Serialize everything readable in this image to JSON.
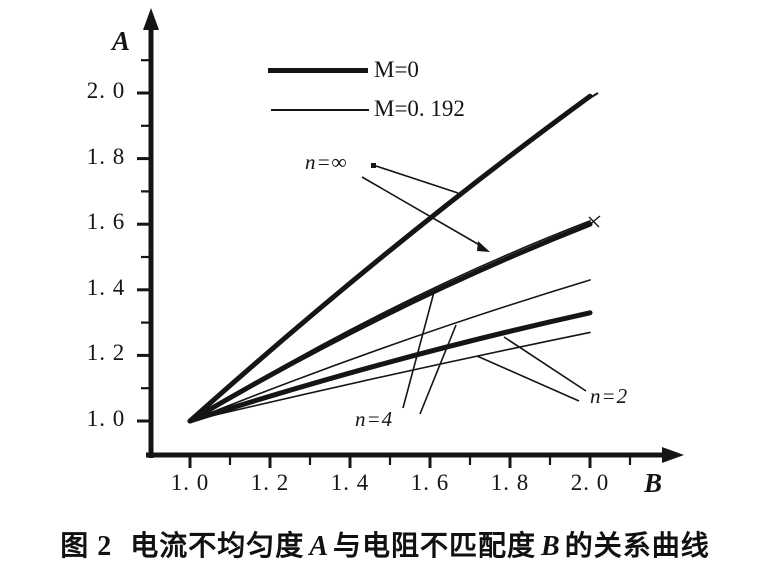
{
  "figure": {
    "axes": {
      "y_label": "A",
      "x_label": "B"
    },
    "caption": {
      "prefix": "图 2",
      "part1": "电流不均匀度",
      "varA": "A",
      "part2": "与电阻不匹配度",
      "varB": "B",
      "part3": "的关系曲线"
    }
  },
  "legend": [
    {
      "label": "M=0",
      "weight": "thick"
    },
    {
      "label": "M=0. 192",
      "weight": "thin"
    }
  ],
  "annotations": [
    {
      "id": "n-inf",
      "text": "n=∞"
    },
    {
      "id": "n-4",
      "text": "n=4"
    },
    {
      "id": "n-2",
      "text": "n=2"
    }
  ],
  "colors": {
    "ink": "#151515",
    "background": "#ffffff"
  },
  "chart_data": {
    "type": "line",
    "title": "",
    "xlabel": "B",
    "ylabel": "A",
    "xlim": [
      0.9,
      2.2
    ],
    "ylim": [
      0.9,
      2.15
    ],
    "grid": false,
    "legend_position": "inside-top-center",
    "x_major_ticks": {
      "values": [
        1.0,
        1.2,
        1.4,
        1.6,
        1.8,
        2.0
      ],
      "labels": [
        "1. 0",
        "1. 2",
        "1. 4",
        "1. 6",
        "1. 8",
        "2. 0"
      ]
    },
    "y_major_ticks": {
      "values": [
        1.0,
        1.2,
        1.4,
        1.6,
        1.8,
        2.0
      ],
      "labels": [
        "1. 0",
        "1. 2",
        "1. 4",
        "1. 6",
        "1. 8",
        "2. 0"
      ]
    },
    "minor_tick_step": 0.1,
    "tick_range": [
      1.0,
      2.1
    ],
    "series": [
      {
        "id": "n-inf-m0",
        "name": "n=∞, M=0",
        "weight": "thick",
        "points": [
          [
            1.0,
            1.0
          ],
          [
            1.5,
            1.52
          ],
          [
            2.0,
            1.99
          ]
        ]
      },
      {
        "id": "n-inf-m192",
        "name": "n=∞, M=0.192",
        "weight": "thin",
        "points": [
          [
            1.0,
            1.0
          ],
          [
            1.5,
            1.34
          ],
          [
            2.0,
            1.61
          ]
        ]
      },
      {
        "id": "n-4-m0",
        "name": "n=4, M=0",
        "weight": "thick",
        "points": [
          [
            1.0,
            1.0
          ],
          [
            1.5,
            1.33
          ],
          [
            2.0,
            1.6
          ]
        ]
      },
      {
        "id": "n-4-m192",
        "name": "n=4, M=0.192",
        "weight": "thin",
        "points": [
          [
            1.0,
            1.0
          ],
          [
            1.5,
            1.23
          ],
          [
            2.0,
            1.43
          ]
        ]
      },
      {
        "id": "n-2-m0",
        "name": "n=2, M=0",
        "weight": "thick",
        "points": [
          [
            1.0,
            1.0
          ],
          [
            1.5,
            1.18
          ],
          [
            2.0,
            1.33
          ]
        ]
      },
      {
        "id": "n-2-m192",
        "name": "n=2, M=0.192",
        "weight": "thin",
        "points": [
          [
            1.0,
            1.0
          ],
          [
            1.5,
            1.14
          ],
          [
            2.0,
            1.27
          ]
        ]
      }
    ]
  }
}
